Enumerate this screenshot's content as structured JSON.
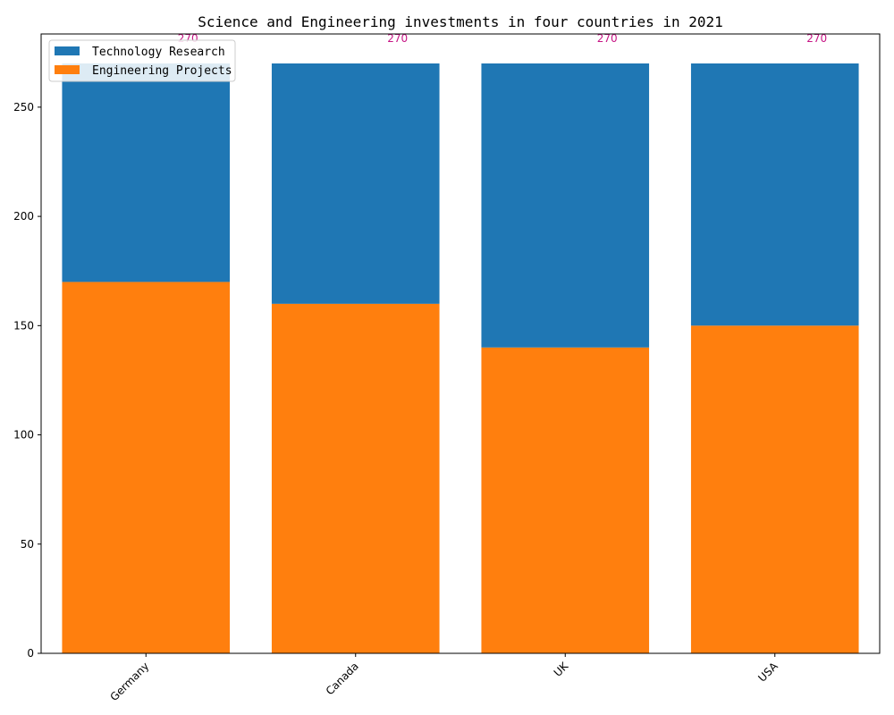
{
  "chart_data": {
    "type": "bar",
    "stacked": true,
    "title": "Science and Engineering investments in four countries in 2021",
    "xlabel": "",
    "ylabel": "",
    "categories": [
      "Germany",
      "Canada",
      "UK",
      "USA"
    ],
    "series": [
      {
        "name": "Engineering Projects",
        "values": [
          170,
          160,
          140,
          150
        ],
        "color": "#ff7f0e"
      },
      {
        "name": "Technology Research",
        "values": [
          100,
          110,
          130,
          120
        ],
        "color": "#1f77b4"
      }
    ],
    "totals": [
      "270",
      "270",
      "270",
      "270"
    ],
    "total_label_color": "#c71585",
    "ylim": [
      0,
      283.5
    ],
    "yticks": [
      0,
      50,
      100,
      150,
      200,
      250
    ],
    "legend_placement": "upper-left",
    "legend_order": [
      "Technology Research",
      "Engineering Projects"
    ],
    "grid": false
  }
}
